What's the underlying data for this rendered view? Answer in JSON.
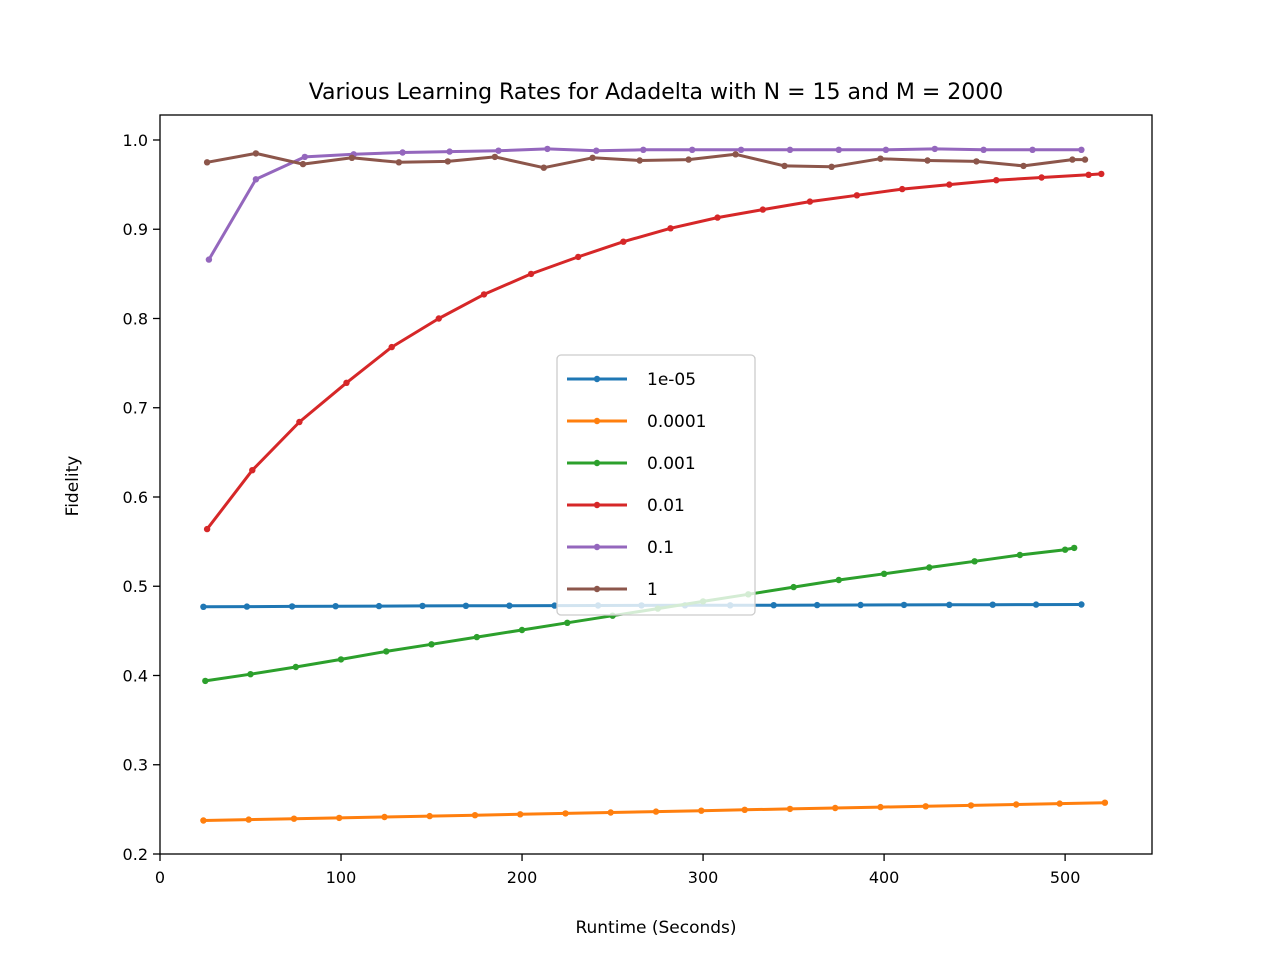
{
  "chart_data": {
    "type": "line",
    "title": "Various Learning Rates for Adadelta with N = 15 and M = 2000",
    "xlabel": "Runtime (Seconds)",
    "ylabel": "Fidelity",
    "xlim": [
      0,
      548
    ],
    "ylim": [
      0.2,
      1.028
    ],
    "xticks": [
      0,
      100,
      200,
      300,
      400,
      500
    ],
    "xtick_labels": [
      "0",
      "100",
      "200",
      "300",
      "400",
      "500"
    ],
    "yticks": [
      0.2,
      0.3,
      0.4,
      0.5,
      0.6,
      0.7,
      0.8,
      0.9,
      1.0
    ],
    "ytick_labels": [
      "0.2",
      "0.3",
      "0.4",
      "0.5",
      "0.6",
      "0.7",
      "0.8",
      "0.9",
      "1.0"
    ],
    "grid": false,
    "legend_position": "center",
    "series": [
      {
        "name": "1e-05",
        "color": "#1f77b4",
        "x": [
          24,
          48,
          73,
          97,
          121,
          145,
          169,
          193,
          218,
          242,
          266,
          290,
          315,
          339,
          363,
          387,
          411,
          436,
          460,
          484,
          509
        ],
        "y": [
          0.477,
          0.4772,
          0.4774,
          0.4776,
          0.4778,
          0.478,
          0.4781,
          0.4782,
          0.4783,
          0.4784,
          0.4785,
          0.4786,
          0.4787,
          0.4788,
          0.4789,
          0.479,
          0.4791,
          0.4792,
          0.4793,
          0.4794,
          0.4795
        ]
      },
      {
        "name": "0.0001",
        "color": "#ff7f0e",
        "x": [
          24,
          49,
          74,
          99,
          124,
          149,
          174,
          199,
          224,
          249,
          274,
          299,
          323,
          348,
          373,
          398,
          423,
          448,
          473,
          497,
          522
        ],
        "y": [
          0.2375,
          0.2385,
          0.2395,
          0.2405,
          0.2415,
          0.2425,
          0.2435,
          0.2445,
          0.2455,
          0.2465,
          0.2475,
          0.2485,
          0.2495,
          0.2505,
          0.2515,
          0.2525,
          0.2535,
          0.2545,
          0.2555,
          0.2565,
          0.2575
        ]
      },
      {
        "name": "0.001",
        "color": "#2ca02c",
        "x": [
          25,
          50,
          75,
          100,
          125,
          150,
          175,
          200,
          225,
          250,
          275,
          300,
          325,
          350,
          375,
          400,
          425,
          450,
          475,
          500,
          505
        ],
        "y": [
          0.394,
          0.4015,
          0.4095,
          0.418,
          0.427,
          0.435,
          0.443,
          0.451,
          0.459,
          0.467,
          0.475,
          0.483,
          0.491,
          0.499,
          0.507,
          0.514,
          0.521,
          0.528,
          0.535,
          0.541,
          0.543
        ]
      },
      {
        "name": "0.01",
        "color": "#d62728",
        "x": [
          26,
          51,
          77,
          103,
          128,
          154,
          179,
          205,
          231,
          256,
          282,
          308,
          333,
          359,
          385,
          410,
          436,
          462,
          487,
          513,
          520
        ],
        "y": [
          0.564,
          0.63,
          0.684,
          0.728,
          0.768,
          0.8,
          0.827,
          0.85,
          0.869,
          0.886,
          0.901,
          0.913,
          0.922,
          0.931,
          0.938,
          0.945,
          0.95,
          0.955,
          0.958,
          0.961,
          0.962
        ]
      },
      {
        "name": "0.1",
        "color": "#9467bd",
        "x": [
          27,
          53,
          80,
          107,
          134,
          160,
          187,
          214,
          241,
          267,
          294,
          321,
          348,
          375,
          401,
          428,
          455,
          482,
          509
        ],
        "y": [
          0.866,
          0.956,
          0.981,
          0.984,
          0.986,
          0.987,
          0.988,
          0.99,
          0.988,
          0.989,
          0.989,
          0.989,
          0.989,
          0.989,
          0.989,
          0.99,
          0.989,
          0.989,
          0.989
        ]
      },
      {
        "name": "1",
        "color": "#8c564b",
        "x": [
          26,
          53,
          79,
          106,
          132,
          159,
          185,
          212,
          239,
          265,
          292,
          318,
          345,
          371,
          398,
          424,
          451,
          477,
          504,
          511
        ],
        "y": [
          0.975,
          0.985,
          0.973,
          0.98,
          0.975,
          0.976,
          0.981,
          0.969,
          0.98,
          0.977,
          0.978,
          0.984,
          0.971,
          0.97,
          0.979,
          0.977,
          0.976,
          0.971,
          0.978,
          0.978
        ]
      }
    ]
  }
}
